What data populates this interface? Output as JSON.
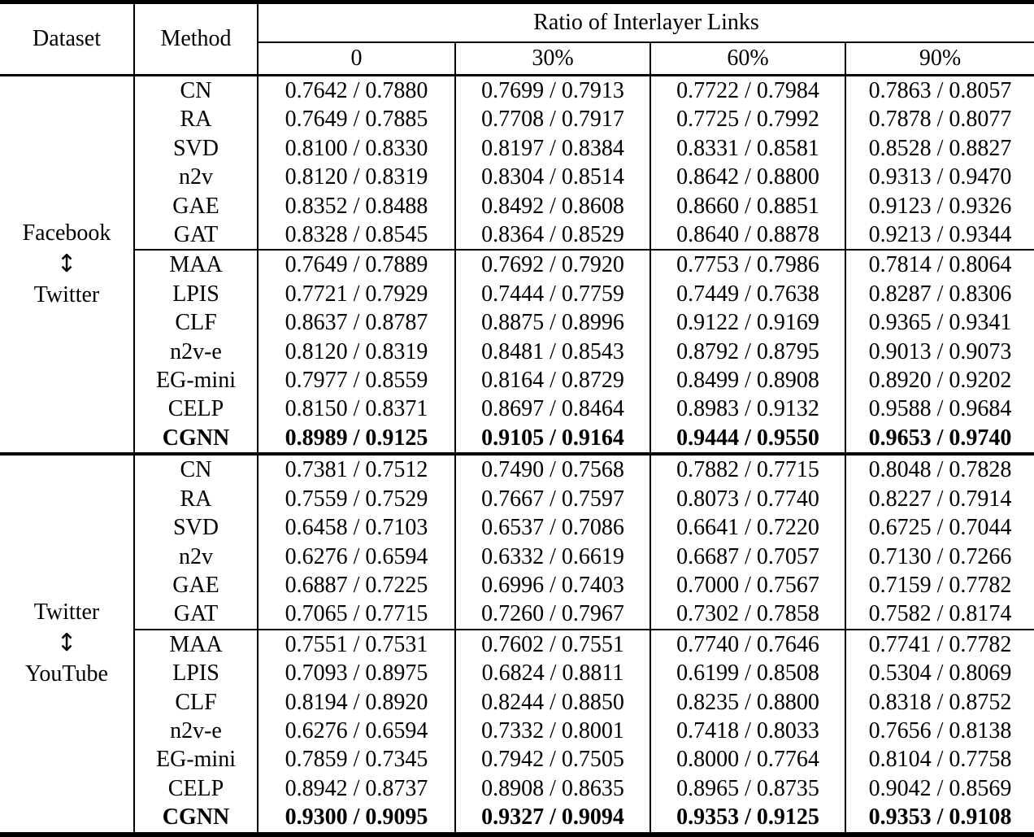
{
  "header": {
    "dataset": "Dataset",
    "method": "Method",
    "ratio_group": "Ratio of Interlayer Links",
    "ratios": [
      "0",
      "30%",
      "60%",
      "90%"
    ]
  },
  "blocks": [
    {
      "dataset_lines": [
        "Facebook",
        "↕",
        "Twitter"
      ],
      "rows": [
        {
          "method": "CN",
          "values": [
            "0.7642 / 0.7880",
            "0.7699 / 0.7913",
            "0.7722 / 0.7984",
            "0.7863 / 0.8057"
          ]
        },
        {
          "method": "RA",
          "values": [
            "0.7649 / 0.7885",
            "0.7708 / 0.7917",
            "0.7725 / 0.7992",
            "0.7878 / 0.8077"
          ]
        },
        {
          "method": "SVD",
          "values": [
            "0.8100 / 0.8330",
            "0.8197 / 0.8384",
            "0.8331 / 0.8581",
            "0.8528 / 0.8827"
          ]
        },
        {
          "method": "n2v",
          "values": [
            "0.8120 / 0.8319",
            "0.8304 / 0.8514",
            "0.8642 / 0.8800",
            "0.9313 / 0.9470"
          ]
        },
        {
          "method": "GAE",
          "values": [
            "0.8352 / 0.8488",
            "0.8492 / 0.8608",
            "0.8660 / 0.8851",
            "0.9123 / 0.9326"
          ]
        },
        {
          "method": "GAT",
          "values": [
            "0.8328 / 0.8545",
            "0.8364 / 0.8529",
            "0.8640 / 0.8878",
            "0.9213 / 0.9344"
          ]
        },
        {
          "method": "MAA",
          "rule_above": true,
          "values": [
            "0.7649 / 0.7889",
            "0.7692 / 0.7920",
            "0.7753 / 0.7986",
            "0.7814 / 0.8064"
          ]
        },
        {
          "method": "LPIS",
          "values": [
            "0.7721 / 0.7929",
            "0.7444 / 0.7759",
            "0.7449 / 0.7638",
            "0.8287 / 0.8306"
          ]
        },
        {
          "method": "CLF",
          "values": [
            "0.8637 / 0.8787",
            "0.8875 / 0.8996",
            "0.9122 / 0.9169",
            "0.9365 / 0.9341"
          ]
        },
        {
          "method": "n2v-e",
          "values": [
            "0.8120 / 0.8319",
            "0.8481 / 0.8543",
            "0.8792 / 0.8795",
            "0.9013 / 0.9073"
          ]
        },
        {
          "method": "EG-mini",
          "values": [
            "0.7977 / 0.8559",
            "0.8164 / 0.8729",
            "0.8499 / 0.8908",
            "0.8920 / 0.9202"
          ]
        },
        {
          "method": "CELP",
          "values": [
            "0.8150 / 0.8371",
            "0.8697 / 0.8464",
            "0.8983 / 0.9132",
            "0.9588 / 0.9684"
          ]
        },
        {
          "method": "CGNN",
          "bold": true,
          "values": [
            "0.8989 / 0.9125",
            "0.9105 / 0.9164",
            "0.9444 / 0.9550",
            "0.9653 / 0.9740"
          ]
        }
      ]
    },
    {
      "dataset_lines": [
        "Twitter",
        "↕",
        "YouTube"
      ],
      "rows": [
        {
          "method": "CN",
          "values": [
            "0.7381 / 0.7512",
            "0.7490 / 0.7568",
            "0.7882 / 0.7715",
            "0.8048 / 0.7828"
          ]
        },
        {
          "method": "RA",
          "values": [
            "0.7559 / 0.7529",
            "0.7667 / 0.7597",
            "0.8073 / 0.7740",
            "0.8227 / 0.7914"
          ]
        },
        {
          "method": "SVD",
          "values": [
            "0.6458 / 0.7103",
            "0.6537 / 0.7086",
            "0.6641 / 0.7220",
            "0.6725 / 0.7044"
          ]
        },
        {
          "method": "n2v",
          "values": [
            "0.6276 / 0.6594",
            "0.6332 / 0.6619",
            "0.6687 / 0.7057",
            "0.7130 / 0.7266"
          ]
        },
        {
          "method": "GAE",
          "values": [
            "0.6887 / 0.7225",
            "0.6996 / 0.7403",
            "0.7000 / 0.7567",
            "0.7159 / 0.7782"
          ]
        },
        {
          "method": "GAT",
          "values": [
            "0.7065 / 0.7715",
            "0.7260 / 0.7967",
            "0.7302 / 0.7858",
            "0.7582 / 0.8174"
          ]
        },
        {
          "method": "MAA",
          "rule_above": true,
          "values": [
            "0.7551 / 0.7531",
            "0.7602 / 0.7551",
            "0.7740 / 0.7646",
            "0.7741 / 0.7782"
          ]
        },
        {
          "method": "LPIS",
          "values": [
            "0.7093 / 0.8975",
            "0.6824 / 0.8811",
            "0.6199 / 0.8508",
            "0.5304 / 0.8069"
          ]
        },
        {
          "method": "CLF",
          "values": [
            "0.8194 / 0.8920",
            "0.8244 / 0.8850",
            "0.8235 / 0.8800",
            "0.8318 / 0.8752"
          ]
        },
        {
          "method": "n2v-e",
          "values": [
            "0.6276 / 0.6594",
            "0.7332 / 0.8001",
            "0.7418 / 0.8033",
            "0.7656 / 0.8138"
          ]
        },
        {
          "method": "EG-mini",
          "values": [
            "0.7859 / 0.7345",
            "0.7942 / 0.7505",
            "0.8000 / 0.7764",
            "0.8104 / 0.7758"
          ]
        },
        {
          "method": "CELP",
          "values": [
            "0.8942 / 0.8737",
            "0.8908 / 0.8635",
            "0.8965 / 0.8735",
            "0.9042 / 0.8569"
          ]
        },
        {
          "method": "CGNN",
          "bold": true,
          "values": [
            "0.9300 / 0.9095",
            "0.9327 / 0.9094",
            "0.9353 / 0.9125",
            "0.9353 / 0.9108"
          ]
        }
      ]
    }
  ]
}
